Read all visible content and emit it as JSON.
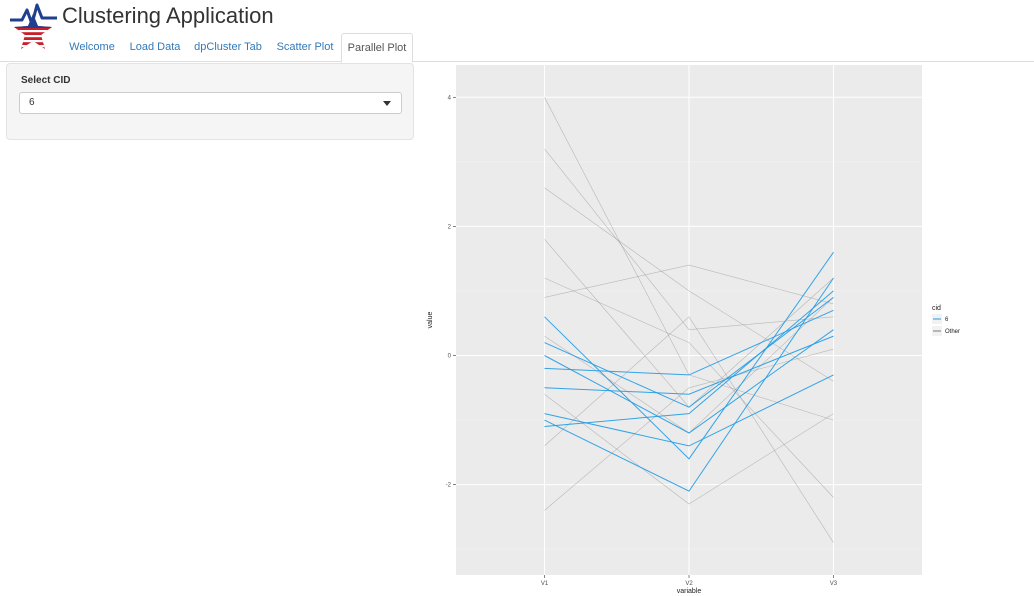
{
  "app": {
    "title": "Clustering Application"
  },
  "tabs": [
    {
      "label": "Welcome",
      "active": false
    },
    {
      "label": "Load Data",
      "active": false
    },
    {
      "label": "dpCluster Tab",
      "active": false
    },
    {
      "label": "Scatter Plot",
      "active": false
    },
    {
      "label": "Parallel Plot",
      "active": true
    }
  ],
  "sidebar": {
    "select_label": "Select CID",
    "select_value": "6"
  },
  "colors": {
    "highlight": "#1f9be6",
    "other": "#7a7a7a",
    "panel_bg": "#ebebeb",
    "tab_link": "#337ab7"
  },
  "chart_data": {
    "type": "line",
    "subtype": "parallel-coordinates",
    "x": [
      "V1",
      "V2",
      "V3"
    ],
    "xlabel": "variable",
    "ylabel": "value",
    "ylim": [
      -3.4,
      4.5
    ],
    "y_ticks": [
      -2,
      0,
      2,
      4
    ],
    "legend": {
      "title": "cid",
      "position": "right",
      "entries": [
        {
          "label": "6",
          "color": "#1f9be6"
        },
        {
          "label": "Other",
          "color": "#7a7a7a"
        }
      ]
    },
    "series": [
      {
        "group": "Other",
        "values": [
          4.0,
          -0.3,
          -1.0
        ]
      },
      {
        "group": "Other",
        "values": [
          3.2,
          0.4,
          0.6
        ]
      },
      {
        "group": "Other",
        "values": [
          2.6,
          1.0,
          -0.4
        ]
      },
      {
        "group": "Other",
        "values": [
          1.8,
          -0.8,
          1.2
        ]
      },
      {
        "group": "Other",
        "values": [
          0.9,
          1.4,
          0.8
        ]
      },
      {
        "group": "Other",
        "values": [
          -0.6,
          -2.3,
          -0.9
        ]
      },
      {
        "group": "Other",
        "values": [
          -1.4,
          0.6,
          -2.9
        ]
      },
      {
        "group": "Other",
        "values": [
          -2.4,
          -0.5,
          0.1
        ]
      },
      {
        "group": "Other",
        "values": [
          1.2,
          0.2,
          -2.2
        ]
      },
      {
        "group": "Other",
        "values": [
          0.3,
          -1.2,
          0.9
        ]
      },
      {
        "group": "6",
        "values": [
          0.6,
          -1.6,
          1.6
        ]
      },
      {
        "group": "6",
        "values": [
          -1.0,
          -2.1,
          1.2
        ]
      },
      {
        "group": "6",
        "values": [
          -0.2,
          -0.3,
          0.7
        ]
      },
      {
        "group": "6",
        "values": [
          -0.9,
          -1.4,
          -0.3
        ]
      },
      {
        "group": "6",
        "values": [
          0.2,
          -0.8,
          0.9
        ]
      },
      {
        "group": "6",
        "values": [
          -0.5,
          -0.6,
          0.3
        ]
      },
      {
        "group": "6",
        "values": [
          -1.1,
          -0.9,
          1.0
        ]
      },
      {
        "group": "6",
        "values": [
          0.0,
          -1.2,
          0.4
        ]
      }
    ]
  }
}
